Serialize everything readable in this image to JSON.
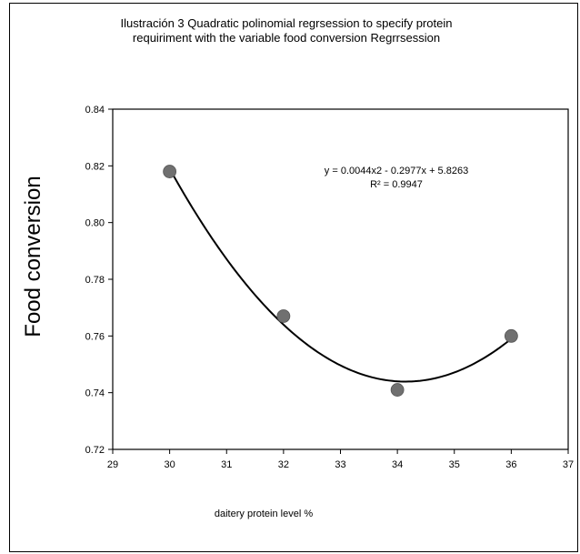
{
  "chart_data": {
    "type": "scatter",
    "title": [
      "Ilustración 3  Quadratic polinomial regrsession  to specify protein",
      "requiriment  with the variable food conversion  Regrrsession"
    ],
    "xlabel": "daitery protein level %",
    "ylabel": "Food conversion",
    "xlim": [
      29,
      37
    ],
    "ylim": [
      0.72,
      0.84
    ],
    "x_ticks": [
      "29",
      "30",
      "31",
      "32",
      "33",
      "34",
      "35",
      "36",
      "37"
    ],
    "y_ticks": [
      "0.72",
      "0.74",
      "0.76",
      "0.78",
      "0.80",
      "0.82",
      "0.84"
    ],
    "grid": false,
    "series": [
      {
        "x": [
          30,
          32,
          34,
          36
        ],
        "y": [
          0.818,
          0.767,
          0.741,
          0.76
        ]
      }
    ],
    "trendline": {
      "type": "polynomial-2",
      "equation": "y = 0.0044x2 - 0.2977x + 5.8263",
      "r_squared": "R² = 0.9947",
      "x_range": [
        30,
        36
      ]
    },
    "colors": {
      "marker": "#707070",
      "line": "#000000",
      "axis": "#000000"
    }
  }
}
